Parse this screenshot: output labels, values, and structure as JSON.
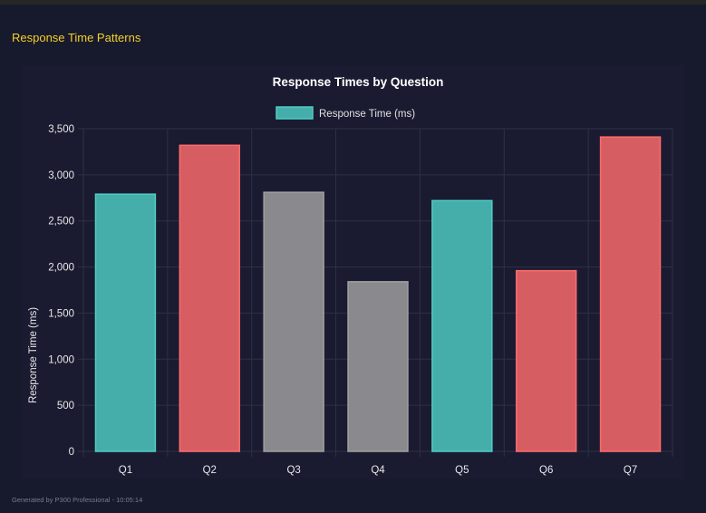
{
  "section_title": "Response Time Patterns",
  "footer": "Generated by P300 Professional - 10:05:14",
  "chart_data": {
    "type": "bar",
    "title": "Response Times by Question",
    "legend": {
      "label": "Response Time (ms)",
      "placement": "top",
      "color": "#4ecdc4"
    },
    "ylabel": "Response Time (ms)",
    "xlabel": "",
    "ylim": [
      0,
      3500
    ],
    "yticks": [
      0,
      500,
      1000,
      1500,
      2000,
      2500,
      3000,
      3500
    ],
    "ytick_labels": [
      "0",
      "500",
      "1,000",
      "1,500",
      "2,000",
      "2,500",
      "3,000",
      "3,500"
    ],
    "grid": true,
    "categories": [
      "Q1",
      "Q2",
      "Q3",
      "Q4",
      "Q5",
      "Q6",
      "Q7"
    ],
    "values": [
      2790,
      3320,
      2810,
      1840,
      2720,
      1960,
      3410
    ],
    "colors": [
      "#45aeaa",
      "#d65e63",
      "#8a898e",
      "#8a898e",
      "#45aeaa",
      "#d65e63",
      "#d65e63"
    ],
    "border_colors": [
      "#4ecdc4",
      "#ff6b6b",
      "#a0a0a0",
      "#a0a0a0",
      "#4ecdc4",
      "#ff6b6b",
      "#ff6b6b"
    ]
  }
}
